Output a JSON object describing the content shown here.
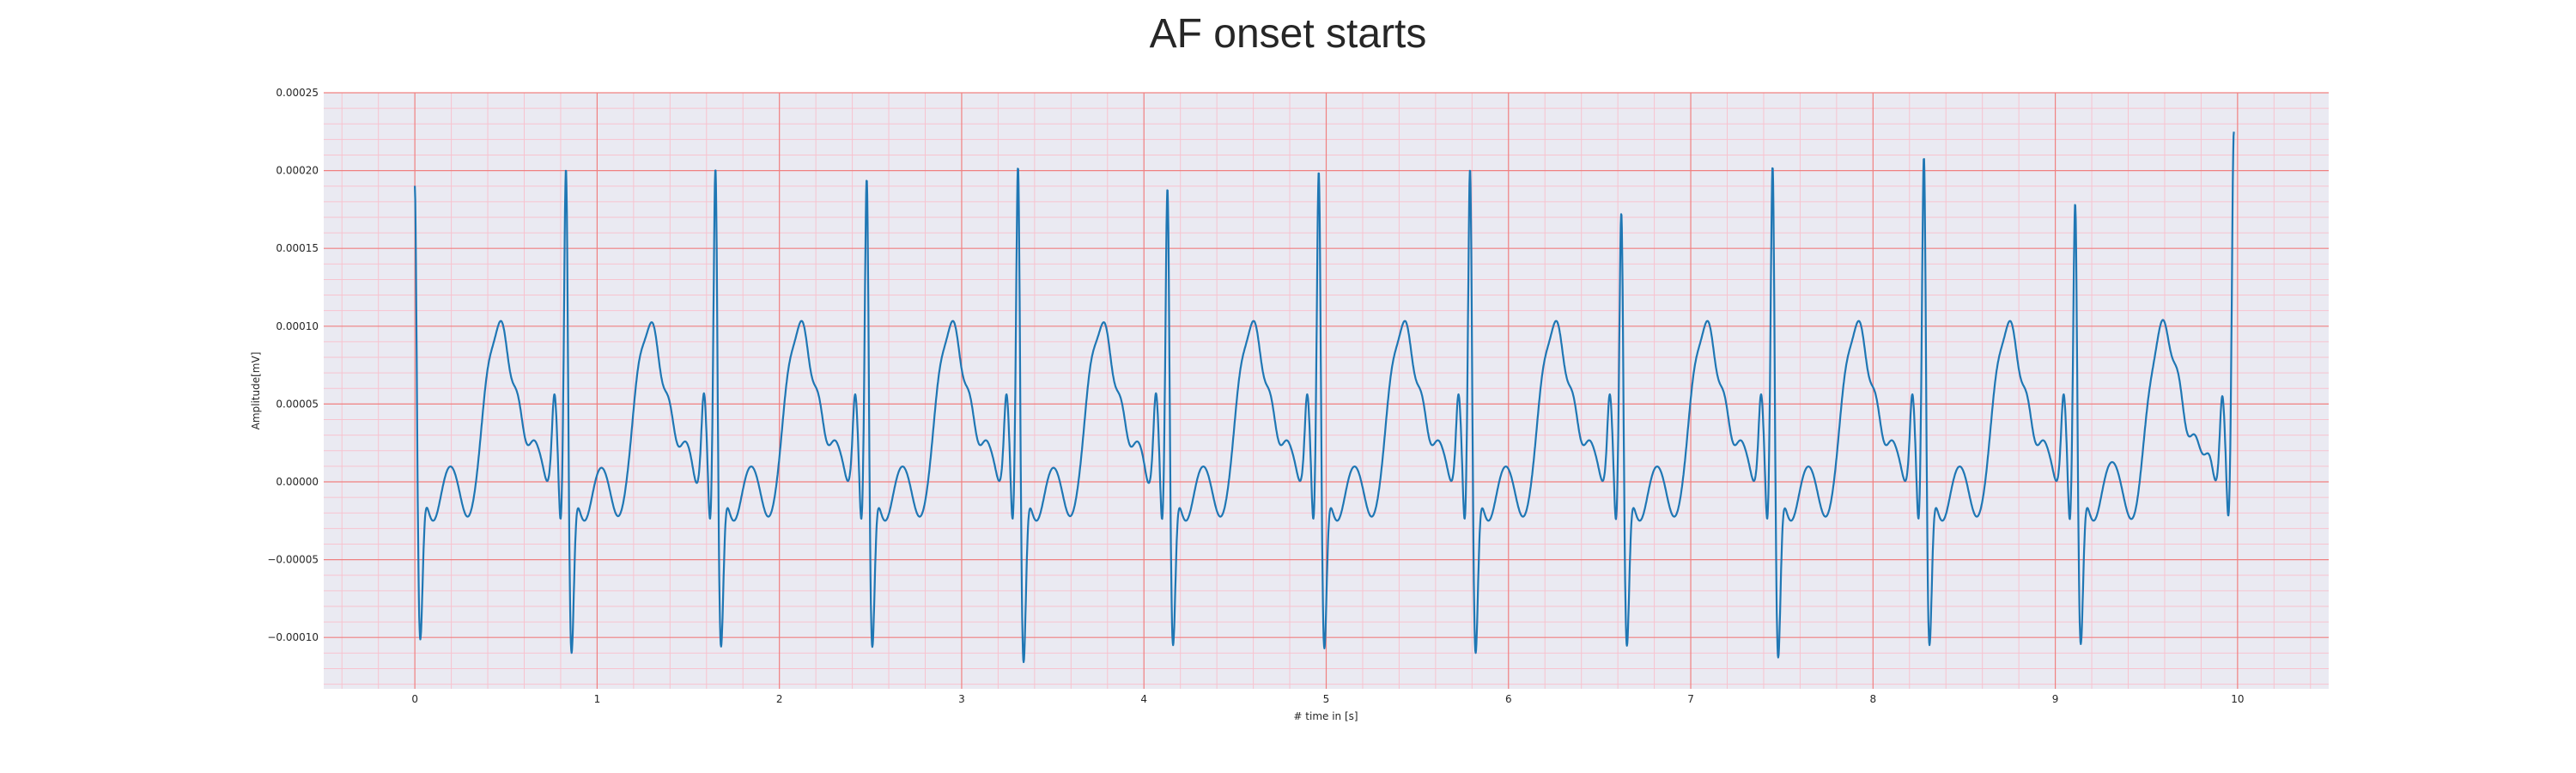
{
  "chart_data": {
    "type": "line",
    "title": "AF onset starts",
    "xlabel": "# time in [s]",
    "ylabel": "Amplitude[mV]",
    "xlim": [
      -0.5,
      10.5
    ],
    "ylim": [
      -0.000133,
      0.00025
    ],
    "xticks": [
      0,
      1,
      2,
      3,
      4,
      5,
      6,
      7,
      8,
      9,
      10
    ],
    "xtick_labels": [
      "0",
      "1",
      "2",
      "3",
      "4",
      "5",
      "6",
      "7",
      "8",
      "9",
      "10"
    ],
    "yticks": [
      -0.0001,
      -5e-05,
      0.0,
      5e-05,
      0.0001,
      0.00015,
      0.0002,
      0.00025
    ],
    "ytick_labels": [
      "−0.00010",
      "−0.00005",
      "0.00000",
      "0.00005",
      "0.00010",
      "0.00015",
      "0.00020",
      "0.00025"
    ],
    "grid": true,
    "colors": {
      "line": "#1f77b4",
      "background": "#eaeaf2",
      "major_grid": "#f08080",
      "minor_grid": "#f7c3cf"
    },
    "series": [
      {
        "beats": [
          {
            "r_time": 0.0,
            "r_peak": 0.000209,
            "s_trough": -0.000101
          },
          {
            "r_time": 0.83,
            "r_peak": 0.00022,
            "s_trough": -0.00011
          },
          {
            "r_time": 1.65,
            "r_peak": 0.00022,
            "s_trough": -0.000106
          },
          {
            "r_time": 2.48,
            "r_peak": 0.000213,
            "s_trough": -0.000106
          },
          {
            "r_time": 3.31,
            "r_peak": 0.000222,
            "s_trough": -0.000116
          },
          {
            "r_time": 4.13,
            "r_peak": 0.000207,
            "s_trough": -0.000105
          },
          {
            "r_time": 4.96,
            "r_peak": 0.000218,
            "s_trough": -0.000107
          },
          {
            "r_time": 5.79,
            "r_peak": 0.00022,
            "s_trough": -0.00011
          },
          {
            "r_time": 6.62,
            "r_peak": 0.000191,
            "s_trough": -0.000105
          },
          {
            "r_time": 7.45,
            "r_peak": 0.000222,
            "s_trough": -0.000113
          },
          {
            "r_time": 8.28,
            "r_peak": 0.000227,
            "s_trough": -0.000105
          },
          {
            "r_time": 9.11,
            "r_peak": 0.000197,
            "s_trough": -0.000104
          },
          {
            "r_time": 9.98,
            "r_peak": 0.000233,
            "s_trough": -4.5e-05
          }
        ]
      }
    ]
  }
}
